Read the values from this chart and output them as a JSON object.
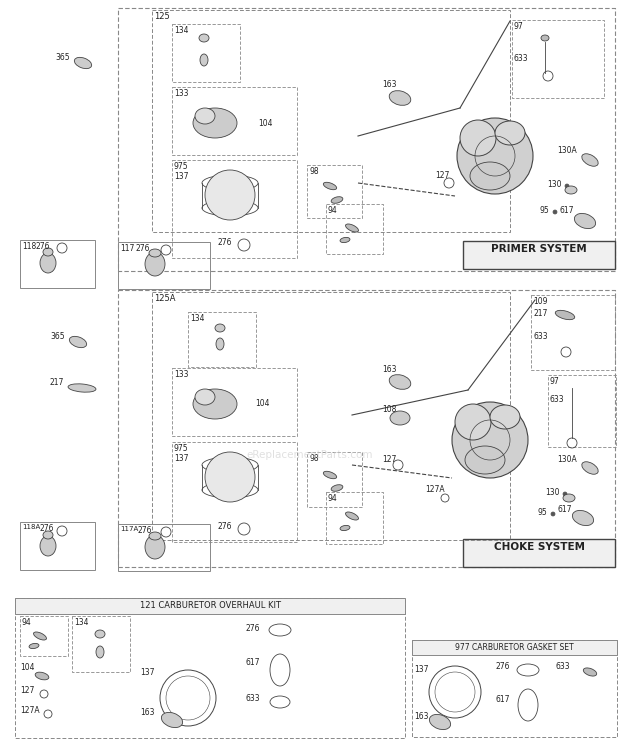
{
  "bg_color": "#ffffff",
  "primer_system_label": "PRIMER SYSTEM",
  "choke_system_label": "CHOKE SYSTEM",
  "overhaul_kit_label": "121 CARBURETOR OVERHAUL KIT",
  "gasket_set_label": "977 CARBURETOR GASKET SET",
  "watermark": "eReplacementParts.com",
  "fig_w": 6.2,
  "fig_h": 7.44,
  "dpi": 100
}
